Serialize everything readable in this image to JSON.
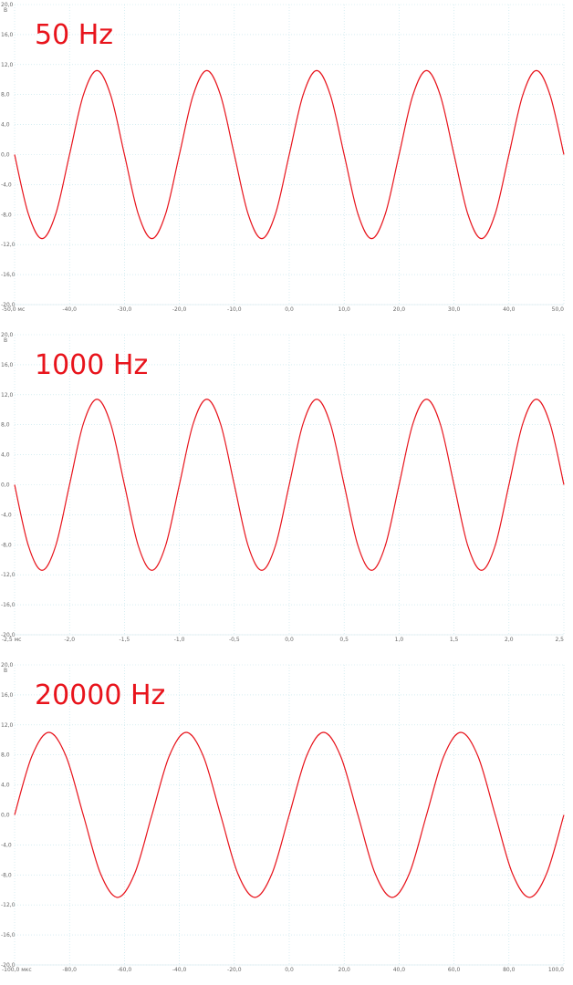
{
  "chart_data": [
    {
      "type": "line",
      "title": "50 Hz",
      "ylabel": "В",
      "color": "#e8141c",
      "grid": true,
      "x": [
        -50,
        -47.5,
        -45,
        -42.5,
        -40,
        -37.5,
        -35,
        -32.5,
        -30,
        -27.5,
        -25,
        -22.5,
        -20,
        -17.5,
        -15,
        -12.5,
        -10,
        -7.5,
        -5,
        -2.5,
        0,
        2.5,
        5,
        7.5,
        10,
        12.5,
        15,
        17.5,
        20,
        22.5,
        25,
        27.5,
        30,
        32.5,
        35,
        37.5,
        40,
        42.5,
        45,
        47.5,
        50
      ],
      "values": [
        0,
        -7.9,
        -11.2,
        -7.9,
        0,
        7.9,
        11.2,
        7.9,
        0,
        -7.9,
        -11.2,
        -7.9,
        0,
        7.9,
        11.2,
        7.9,
        0,
        -7.9,
        -11.2,
        -7.9,
        0,
        7.9,
        11.2,
        7.9,
        0,
        -7.9,
        -11.2,
        -7.9,
        0,
        7.9,
        11.2,
        7.9,
        0,
        -7.9,
        -11.2,
        -7.9,
        0,
        7.9,
        11.2,
        7.9,
        0
      ],
      "xlim": [
        -50,
        50
      ],
      "ylim": [
        -20,
        20
      ],
      "xticks": [
        {
          "value": -50,
          "label": "-50,0 мс"
        },
        {
          "value": -40,
          "label": "-40,0"
        },
        {
          "value": -30,
          "label": "-30,0"
        },
        {
          "value": -20,
          "label": "-20,0"
        },
        {
          "value": -10,
          "label": "-10,0"
        },
        {
          "value": 0,
          "label": "0,0"
        },
        {
          "value": 10,
          "label": "10,0"
        },
        {
          "value": 20,
          "label": "20,0"
        },
        {
          "value": 30,
          "label": "30,0"
        },
        {
          "value": 40,
          "label": "40,0"
        },
        {
          "value": 50,
          "label": "50,0"
        }
      ],
      "yticks": [
        {
          "value": 20,
          "label": "20,0"
        },
        {
          "value": 16,
          "label": "16,0"
        },
        {
          "value": 12,
          "label": "12,0"
        },
        {
          "value": 8,
          "label": "8,0"
        },
        {
          "value": 4,
          "label": "4,0"
        },
        {
          "value": 0,
          "label": "0,0"
        },
        {
          "value": -4,
          "label": "-4,0"
        },
        {
          "value": -8,
          "label": "-8,0"
        },
        {
          "value": -12,
          "label": "-12,0"
        },
        {
          "value": -16,
          "label": "-16,0"
        },
        {
          "value": -20,
          "label": "-20,0"
        }
      ]
    },
    {
      "type": "line",
      "title": "1000 Hz",
      "ylabel": "В",
      "color": "#e8141c",
      "grid": true,
      "x": [
        -2.5,
        -2.375,
        -2.25,
        -2.125,
        -2,
        -1.875,
        -1.75,
        -1.625,
        -1.5,
        -1.375,
        -1.25,
        -1.125,
        -1,
        -0.875,
        -0.75,
        -0.625,
        -0.5,
        -0.375,
        -0.25,
        -0.125,
        0,
        0.125,
        0.25,
        0.375,
        0.5,
        0.625,
        0.75,
        0.875,
        1,
        1.125,
        1.25,
        1.375,
        1.5,
        1.625,
        1.75,
        1.875,
        2,
        2.125,
        2.25,
        2.375,
        2.5
      ],
      "values": [
        0,
        -8.1,
        -11.4,
        -8.1,
        0,
        8.1,
        11.4,
        8.1,
        0,
        -8.1,
        -11.4,
        -8.1,
        0,
        8.1,
        11.4,
        8.1,
        0,
        -8.1,
        -11.4,
        -8.1,
        0,
        8.1,
        11.4,
        8.1,
        0,
        -8.1,
        -11.4,
        -8.1,
        0,
        8.1,
        11.4,
        8.1,
        0,
        -8.1,
        -11.4,
        -8.1,
        0,
        8.1,
        11.4,
        8.1,
        0
      ],
      "xlim": [
        -2.5,
        2.5
      ],
      "ylim": [
        -20,
        20
      ],
      "xticks": [
        {
          "value": -2.5,
          "label": "-2,5 мс"
        },
        {
          "value": -2,
          "label": "-2,0"
        },
        {
          "value": -1.5,
          "label": "-1,5"
        },
        {
          "value": -1,
          "label": "-1,0"
        },
        {
          "value": -0.5,
          "label": "-0,5"
        },
        {
          "value": 0,
          "label": "0,0"
        },
        {
          "value": 0.5,
          "label": "0,5"
        },
        {
          "value": 1,
          "label": "1,0"
        },
        {
          "value": 1.5,
          "label": "1,5"
        },
        {
          "value": 2,
          "label": "2,0"
        },
        {
          "value": 2.5,
          "label": "2,5"
        }
      ],
      "yticks": [
        {
          "value": 20,
          "label": "20,0"
        },
        {
          "value": 16,
          "label": "16,0"
        },
        {
          "value": 12,
          "label": "12,0"
        },
        {
          "value": 8,
          "label": "8,0"
        },
        {
          "value": 4,
          "label": "4,0"
        },
        {
          "value": 0,
          "label": "0,0"
        },
        {
          "value": -4,
          "label": "-4,0"
        },
        {
          "value": -8,
          "label": "-8,0"
        },
        {
          "value": -12,
          "label": "-12,0"
        },
        {
          "value": -16,
          "label": "-16,0"
        },
        {
          "value": -20,
          "label": "-20,0"
        }
      ]
    },
    {
      "type": "line",
      "title": "20000 Hz",
      "ylabel": "В",
      "color": "#e8141c",
      "grid": true,
      "x": [
        -100,
        -93.75,
        -87.5,
        -81.25,
        -75,
        -68.75,
        -62.5,
        -56.25,
        -50,
        -43.75,
        -37.5,
        -31.25,
        -25,
        -18.75,
        -12.5,
        -6.25,
        0,
        6.25,
        12.5,
        18.75,
        25,
        31.25,
        37.5,
        43.75,
        50,
        56.25,
        62.5,
        68.75,
        75,
        81.25,
        87.5,
        93.75,
        100
      ],
      "values": [
        0,
        7.8,
        11,
        7.8,
        0,
        -7.8,
        -11,
        -7.8,
        0,
        7.8,
        11,
        7.8,
        0,
        -7.8,
        -11,
        -7.8,
        0,
        7.8,
        11,
        7.8,
        0,
        -7.8,
        -11,
        -7.8,
        0,
        7.8,
        11,
        7.8,
        0,
        -7.8,
        -11,
        -7.8,
        0
      ],
      "xlim": [
        -100,
        100
      ],
      "ylim": [
        -20,
        20
      ],
      "xticks": [
        {
          "value": -100,
          "label": "-100,0 мкс"
        },
        {
          "value": -80,
          "label": "-80,0"
        },
        {
          "value": -60,
          "label": "-60,0"
        },
        {
          "value": -40,
          "label": "-40,0"
        },
        {
          "value": -20,
          "label": "-20,0"
        },
        {
          "value": 0,
          "label": "0,0"
        },
        {
          "value": 20,
          "label": "20,0"
        },
        {
          "value": 40,
          "label": "40,0"
        },
        {
          "value": 60,
          "label": "60,0"
        },
        {
          "value": 80,
          "label": "80,0"
        },
        {
          "value": 100,
          "label": "100,0"
        }
      ],
      "yticks": [
        {
          "value": 20,
          "label": "20,0"
        },
        {
          "value": 16,
          "label": "16,0"
        },
        {
          "value": 12,
          "label": "12,0"
        },
        {
          "value": 8,
          "label": "8,0"
        },
        {
          "value": 4,
          "label": "4,0"
        },
        {
          "value": 0,
          "label": "0,0"
        },
        {
          "value": -4,
          "label": "-4,0"
        },
        {
          "value": -8,
          "label": "-8,0"
        },
        {
          "value": -12,
          "label": "-12,0"
        },
        {
          "value": -16,
          "label": "-16,0"
        },
        {
          "value": -20,
          "label": "-20,0"
        }
      ]
    }
  ]
}
